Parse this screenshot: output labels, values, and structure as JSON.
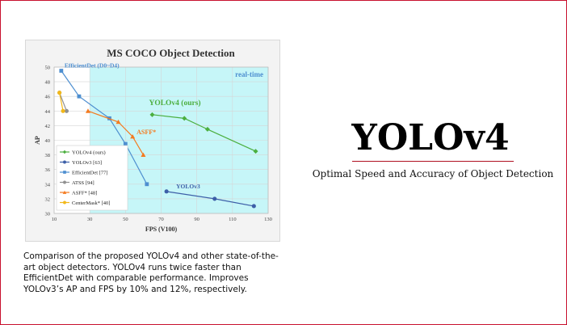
{
  "slide": {
    "title": "YOLOv4",
    "subtitle": "Optimal Speed and Accuracy of Object Detection",
    "caption": "Comparison of the proposed YOLOv4 and other state-of-the-art object detectors. YOLOv4 runs twice faster than EfficientDet with comparable performance. Improves YOLOv3’s AP and FPS by 10% and 12%, respectively."
  },
  "colors": {
    "accent": "#c8102e",
    "realtime_band": "#c6f6f8",
    "yolov4": "#4caf3f",
    "yolov3": "#3d5fa8",
    "efficientdet": "#4e8fd0",
    "atss": "#909090",
    "asff": "#f47a1f",
    "centermask": "#f2b81a"
  },
  "chart_data": {
    "type": "line",
    "title": "MS COCO Object Detection",
    "xlabel": "FPS (V100)",
    "ylabel": "AP",
    "xlim": [
      10,
      130
    ],
    "ylim": [
      30,
      50
    ],
    "xticks": [
      10,
      30,
      50,
      70,
      90,
      110,
      130
    ],
    "yticks": [
      30,
      32,
      34,
      36,
      38,
      40,
      42,
      44,
      46,
      48,
      50
    ],
    "grid": true,
    "legend_position": "bottom-left",
    "realtime_region": {
      "label": "real-time",
      "x_start": 30
    },
    "annotations": [
      {
        "text": "EfficientDet (D0~D4)",
        "series": "EfficientDet [77]"
      },
      {
        "text": "YOLOv4 (ours)",
        "series": "YOLOv4 (ours)"
      },
      {
        "text": "ASFF*",
        "series": "ASFF* [48]"
      },
      {
        "text": "YOLOv3",
        "series": "YOLOv3 [63]"
      }
    ],
    "series": [
      {
        "name": "YOLOv4 (ours)",
        "marker": "diamond",
        "color": "#4caf3f",
        "x": [
          65,
          83,
          96,
          123
        ],
        "y": [
          43.5,
          43.0,
          41.5,
          38.5
        ]
      },
      {
        "name": "YOLOv3 [63]",
        "marker": "circle",
        "color": "#3d5fa8",
        "x": [
          73,
          100,
          122
        ],
        "y": [
          33.0,
          32.0,
          31.0
        ]
      },
      {
        "name": "EfficientDet [77]",
        "marker": "square",
        "color": "#4e8fd0",
        "x": [
          14,
          24,
          41,
          50,
          62
        ],
        "y": [
          49.5,
          46.0,
          43.0,
          39.5,
          34.0
        ]
      },
      {
        "name": "ATSS [94]",
        "marker": "circle",
        "color": "#909090",
        "x": [
          13,
          17
        ],
        "y": [
          46.5,
          44.0
        ]
      },
      {
        "name": "ASFF* [48]",
        "marker": "triangle",
        "color": "#f47a1f",
        "x": [
          29,
          46,
          54,
          60
        ],
        "y": [
          44.0,
          42.5,
          40.5,
          38.0
        ]
      },
      {
        "name": "CenterMask* [40]",
        "marker": "circle",
        "color": "#f2b81a",
        "x": [
          13,
          15
        ],
        "y": [
          46.5,
          44.0
        ]
      }
    ]
  }
}
